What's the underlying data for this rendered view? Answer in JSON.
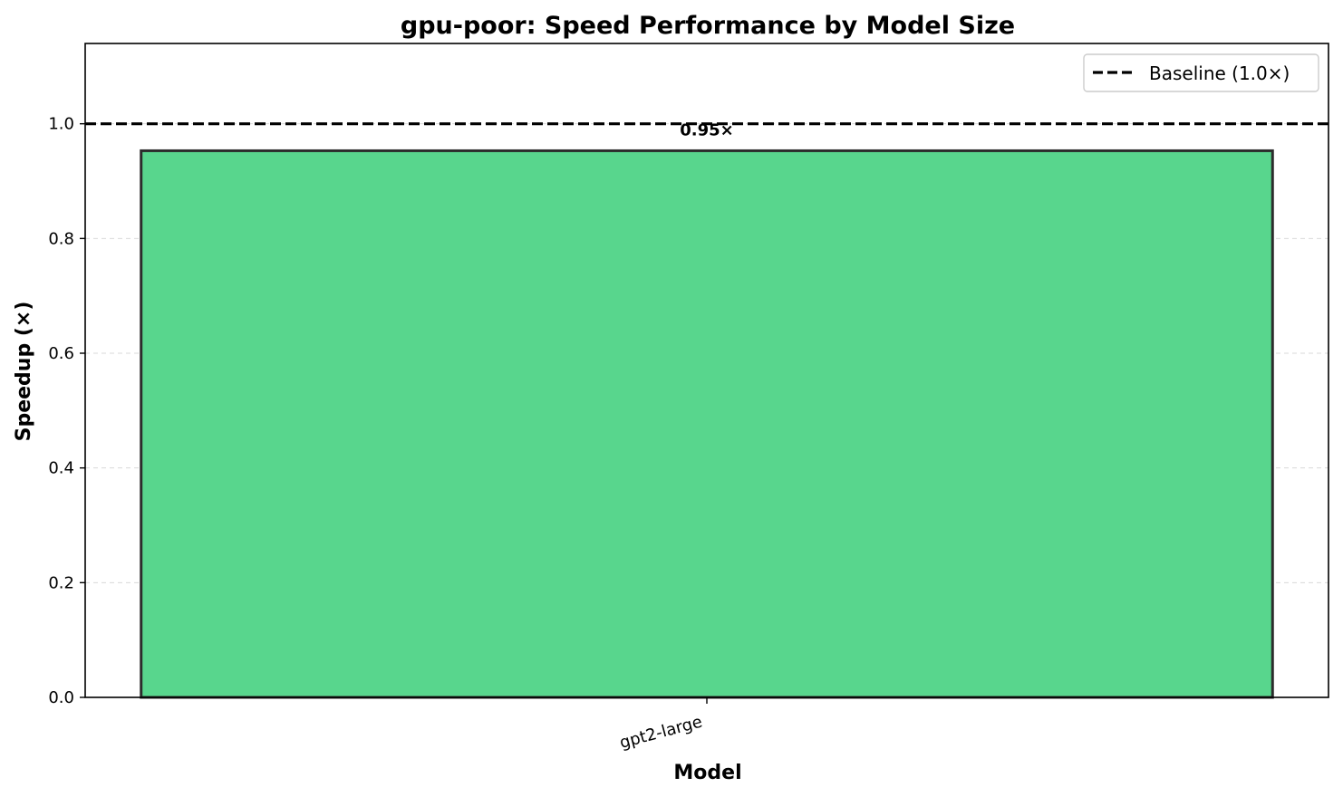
{
  "chart_data": {
    "type": "bar",
    "title": "gpu-poor: Speed Performance by Model Size",
    "xlabel": "Model",
    "ylabel": "Speedup (×)",
    "categories": [
      "gpt2-large"
    ],
    "values": [
      0.953
    ],
    "data_labels": [
      "0.95×"
    ],
    "ylim": [
      0,
      1.14
    ],
    "yticks": [
      0.0,
      0.2,
      0.4,
      0.6,
      0.8,
      1.0
    ],
    "ytick_labels": [
      "0.0",
      "0.2",
      "0.4",
      "0.6",
      "0.8",
      "1.0"
    ],
    "reference_line": {
      "value": 1.0,
      "label": "Baseline (1.0×)",
      "style": "dashed",
      "color": "#000000"
    },
    "bar_color": "#58d68d",
    "bar_edge_color": "#2c2c2c",
    "grid": "horizontal dashed",
    "legend_position": "top-right"
  }
}
